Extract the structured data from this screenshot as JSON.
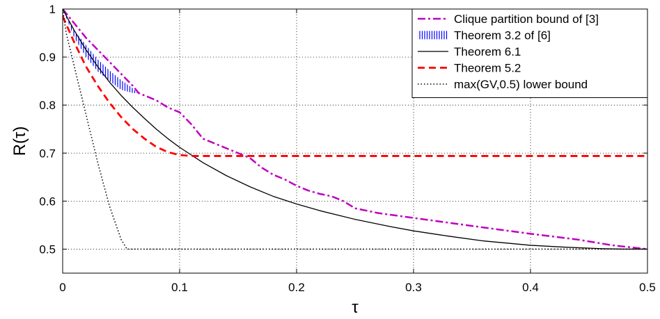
{
  "chart_data": {
    "type": "line",
    "xlabel": "τ",
    "ylabel": "R(τ)",
    "xlim": [
      0,
      0.5
    ],
    "ylim": [
      0.45,
      1.0
    ],
    "xticks": [
      0,
      0.1,
      0.2,
      0.3,
      0.4,
      0.5
    ],
    "xtick_labels": [
      "0",
      "0.1",
      "0.2",
      "0.3",
      "0.4",
      "0.5"
    ],
    "yticks": [
      0.5,
      0.6,
      0.7,
      0.8,
      0.9,
      1.0
    ],
    "ytick_labels": [
      "0.5",
      "0.6",
      "0.7",
      "0.8",
      "0.9",
      "1"
    ],
    "grid": true,
    "legend_position": "top-right",
    "series": [
      {
        "name": "Clique partition bound of [3]",
        "color": "#bf00bf",
        "style": "dash-dot",
        "x": [
          0,
          0.01,
          0.02,
          0.03,
          0.04,
          0.05,
          0.06,
          0.065,
          0.07,
          0.08,
          0.09,
          0.1,
          0.11,
          0.12,
          0.13,
          0.14,
          0.15,
          0.16,
          0.17,
          0.18,
          0.19,
          0.2,
          0.21,
          0.22,
          0.23,
          0.24,
          0.25,
          0.27,
          0.3,
          0.33,
          0.36,
          0.4,
          0.44,
          0.47,
          0.5
        ],
        "y": [
          1.0,
          0.97,
          0.94,
          0.915,
          0.89,
          0.865,
          0.84,
          0.825,
          0.82,
          0.81,
          0.795,
          0.785,
          0.76,
          0.73,
          0.72,
          0.71,
          0.7,
          0.69,
          0.67,
          0.655,
          0.645,
          0.632,
          0.622,
          0.615,
          0.61,
          0.6,
          0.585,
          0.575,
          0.565,
          0.555,
          0.545,
          0.532,
          0.52,
          0.508,
          0.5
        ]
      },
      {
        "name": "Theorem 3.2 of [6]",
        "color": "#0000ff",
        "style": "vertical-hatch",
        "x": [
          0,
          0.01,
          0.02,
          0.03,
          0.04,
          0.05,
          0.06,
          0.064
        ],
        "y_upper": [
          1.0,
          0.955,
          0.925,
          0.895,
          0.872,
          0.852,
          0.835,
          0.825
        ],
        "y_lower": [
          1.0,
          0.94,
          0.9,
          0.87,
          0.85,
          0.832,
          0.825,
          0.825
        ]
      },
      {
        "name": "Theorem 6.1",
        "color": "#000000",
        "style": "solid",
        "x": [
          0,
          0.01,
          0.02,
          0.03,
          0.04,
          0.05,
          0.06,
          0.07,
          0.08,
          0.09,
          0.1,
          0.12,
          0.14,
          0.16,
          0.18,
          0.2,
          0.22,
          0.25,
          0.28,
          0.3,
          0.33,
          0.36,
          0.4,
          0.43,
          0.46,
          0.48,
          0.5
        ],
        "y": [
          1.0,
          0.955,
          0.915,
          0.88,
          0.848,
          0.82,
          0.795,
          0.772,
          0.75,
          0.73,
          0.712,
          0.68,
          0.653,
          0.63,
          0.61,
          0.594,
          0.58,
          0.562,
          0.547,
          0.538,
          0.527,
          0.517,
          0.508,
          0.504,
          0.501,
          0.5,
          0.5
        ]
      },
      {
        "name": "Theorem 5.2",
        "color": "#ff0000",
        "style": "dashed",
        "x": [
          0,
          0.01,
          0.02,
          0.03,
          0.04,
          0.05,
          0.06,
          0.07,
          0.08,
          0.09,
          0.1,
          0.11,
          0.2,
          0.3,
          0.4,
          0.5
        ],
        "y": [
          0.985,
          0.93,
          0.88,
          0.84,
          0.805,
          0.775,
          0.75,
          0.73,
          0.713,
          0.702,
          0.696,
          0.694,
          0.694,
          0.694,
          0.694,
          0.694
        ]
      },
      {
        "name": "max(GV,0.5) lower bound",
        "color": "#000000",
        "style": "dotted",
        "x": [
          0,
          0.003,
          0.01,
          0.02,
          0.03,
          0.04,
          0.05,
          0.055,
          0.1,
          0.2,
          0.3,
          0.4,
          0.5
        ],
        "y": [
          1.0,
          0.95,
          0.88,
          0.78,
          0.68,
          0.59,
          0.52,
          0.5,
          0.5,
          0.5,
          0.5,
          0.5,
          0.5
        ]
      }
    ]
  }
}
